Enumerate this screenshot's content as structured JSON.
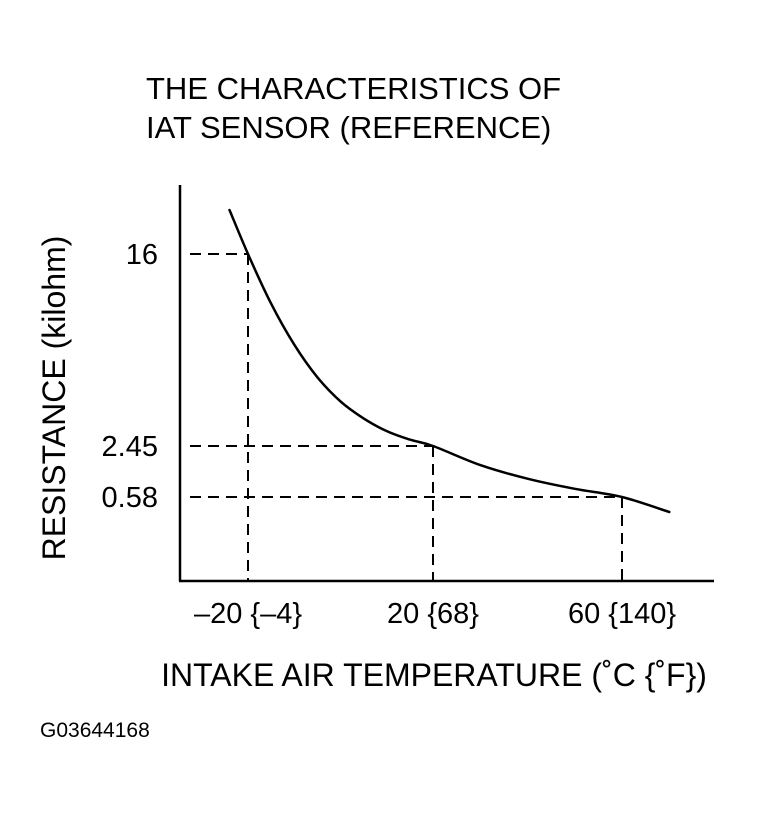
{
  "figure_id": "G03644168",
  "chart_data": {
    "type": "line",
    "title_lines": [
      "THE CHARACTERISTICS OF",
      "IAT SENSOR (REFERENCE)"
    ],
    "xlabel": "INTAKE AIR TEMPERATURE (˚C {˚F})",
    "ylabel": "RESISTANCE (kilohm)",
    "x_ticks": [
      {
        "value": -20,
        "label": "–20 {–4}"
      },
      {
        "value": 20,
        "label": "20 {68}"
      },
      {
        "value": 60,
        "label": "60 {140}"
      }
    ],
    "y_ticks": [
      {
        "value": 16,
        "label": "16"
      },
      {
        "value": 2.45,
        "label": "2.45"
      },
      {
        "value": 0.58,
        "label": "0.58"
      }
    ],
    "reference_points": [
      {
        "x": -20,
        "y": 16
      },
      {
        "x": 20,
        "y": 2.45
      },
      {
        "x": 60,
        "y": 0.58
      }
    ],
    "series": [
      {
        "x": [
          -24,
          -20,
          -15,
          -10,
          -5,
          0,
          5,
          10,
          15,
          20,
          30,
          40,
          50,
          60,
          70
        ],
        "y": [
          18.5,
          16,
          12.5,
          9.6,
          7.3,
          5.6,
          4.4,
          3.5,
          2.9,
          2.45,
          1.75,
          1.25,
          0.88,
          0.58,
          0.35
        ]
      }
    ],
    "grid": false,
    "legend": "none"
  }
}
